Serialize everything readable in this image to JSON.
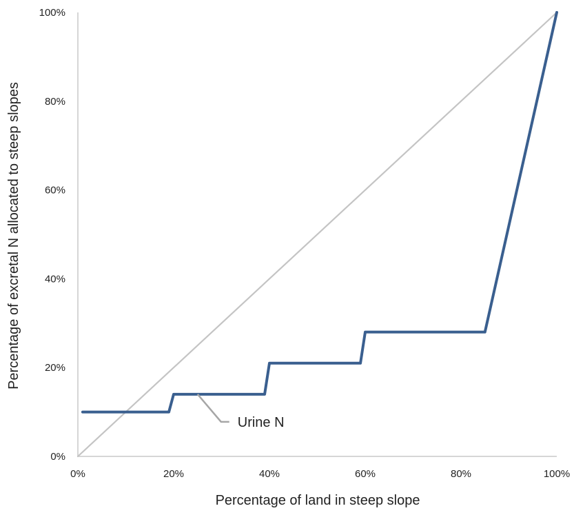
{
  "chart_data": {
    "type": "line",
    "xlabel": "Percentage of land in steep slope",
    "ylabel": "Percentage of excretal N allocated to steep slopes",
    "xlim": [
      0,
      100
    ],
    "ylim": [
      0,
      100
    ],
    "x_ticks": [
      "0%",
      "20%",
      "40%",
      "60%",
      "80%",
      "100%"
    ],
    "y_ticks": [
      "0%",
      "20%",
      "40%",
      "60%",
      "80%",
      "100%"
    ],
    "grid": false,
    "series": [
      {
        "name": "Urine N",
        "color": "#3a5f8f",
        "x": [
          1,
          19,
          20,
          39,
          40,
          59,
          60,
          85,
          100
        ],
        "y": [
          10,
          10,
          14,
          14,
          21,
          21,
          28,
          28,
          100
        ]
      },
      {
        "color": "#c4c4c4",
        "x": [
          0,
          100
        ],
        "y": [
          0,
          100
        ]
      }
    ],
    "annotation": {
      "text": "Urine N",
      "points_to": {
        "x": 25,
        "y": 14
      }
    }
  }
}
